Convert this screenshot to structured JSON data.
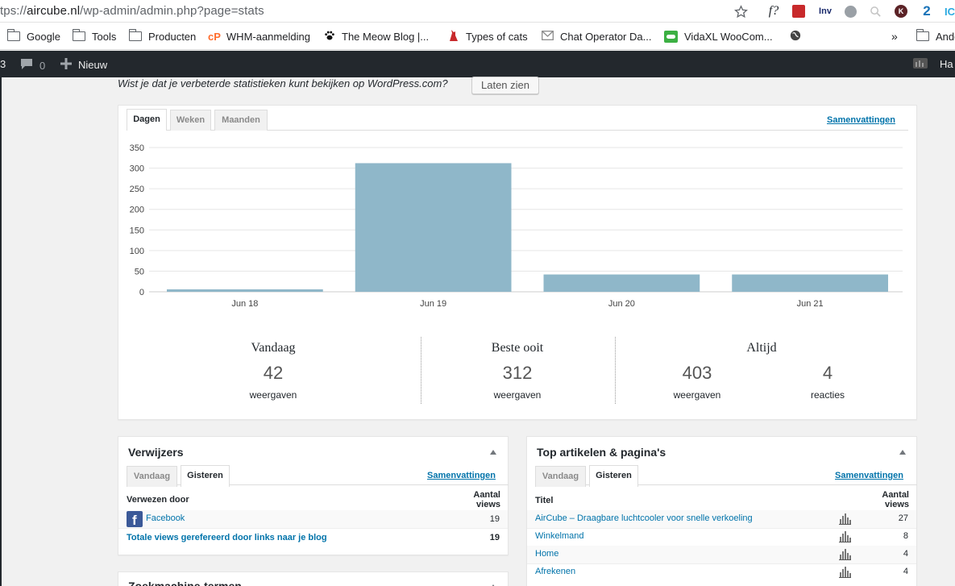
{
  "browser": {
    "url_scheme": "tps://",
    "url_host": "aircube.nl",
    "url_path": "/wp-admin/admin.php?page=stats",
    "extensions": [
      "f?",
      "Inv",
      "K",
      "2",
      "IC"
    ],
    "bookmarks": [
      {
        "label": "Google",
        "icon": "folder-icon"
      },
      {
        "label": "Tools",
        "icon": "folder-icon"
      },
      {
        "label": "Producten",
        "icon": "folder-icon"
      },
      {
        "label": "WHM-aanmelding",
        "icon": "cpanel-icon"
      },
      {
        "label": "The Meow Blog |...",
        "icon": "paw-icon"
      },
      {
        "label": "Types of cats",
        "icon": "cat-icon"
      },
      {
        "label": "Chat Operator Da...",
        "icon": "mail-icon"
      },
      {
        "label": "VidaXL WooCom...",
        "icon": "toggle-icon"
      },
      {
        "label": "",
        "icon": "globe-icon"
      }
    ],
    "more": "»",
    "other_bookmarks": "Ande"
  },
  "adminbar": {
    "updates": "3",
    "comments": "0",
    "new": "Nieuw",
    "howdy": "Ha"
  },
  "notice": {
    "text": "Wist je dat je verbeterde statistieken kunt bekijken op WordPress.com?",
    "button": "Laten zien"
  },
  "stats": {
    "tabs": [
      "Dagen",
      "Weken",
      "Maanden"
    ],
    "active_tab": "Dagen",
    "summaries_link": "Samenvattingen",
    "summary": {
      "today": {
        "label": "Vandaag",
        "value": "42",
        "unit": "weergaven"
      },
      "best": {
        "label": "Beste ooit",
        "value": "312",
        "unit": "weergaven"
      },
      "all": {
        "label": "Altijd",
        "views": "403",
        "views_unit": "weergaven",
        "comments": "4",
        "comments_unit": "reacties"
      }
    }
  },
  "chart_data": {
    "type": "bar",
    "categories": [
      "Jun 18",
      "Jun 19",
      "Jun 20",
      "Jun 21"
    ],
    "values": [
      6,
      312,
      42,
      42
    ],
    "y_ticks": [
      0,
      50,
      100,
      150,
      200,
      250,
      300,
      350
    ],
    "ylim": [
      0,
      350
    ],
    "grid": true,
    "bar_color": "#8fb7c9"
  },
  "referrers": {
    "title": "Verwijzers",
    "tabs": [
      "Vandaag",
      "Gisteren"
    ],
    "active_tab": "Gisteren",
    "summaries_link": "Samenvattingen",
    "col_source": "Verwezen door",
    "col_views": "Aantal views",
    "rows": [
      {
        "label": "Facebook",
        "views": "19"
      }
    ],
    "total_label": "Totale views gerefereerd door links naar je blog",
    "total_views": "19"
  },
  "top_posts": {
    "title": "Top artikelen & pagina's",
    "tabs": [
      "Vandaag",
      "Gisteren"
    ],
    "active_tab": "Gisteren",
    "summaries_link": "Samenvattingen",
    "col_title": "Titel",
    "col_views": "Aantal views",
    "rows": [
      {
        "label": "AirCube – Draagbare luchtcooler voor snelle verkoeling",
        "views": "27"
      },
      {
        "label": "Winkelmand",
        "views": "8"
      },
      {
        "label": "Home",
        "views": "4"
      },
      {
        "label": "Afrekenen",
        "views": "4"
      }
    ]
  },
  "search_terms": {
    "title": "Zoekmachine-termen"
  },
  "colors": {
    "adminbar": "#23282d",
    "link": "#0073aa",
    "bar": "#8fb7c9"
  }
}
